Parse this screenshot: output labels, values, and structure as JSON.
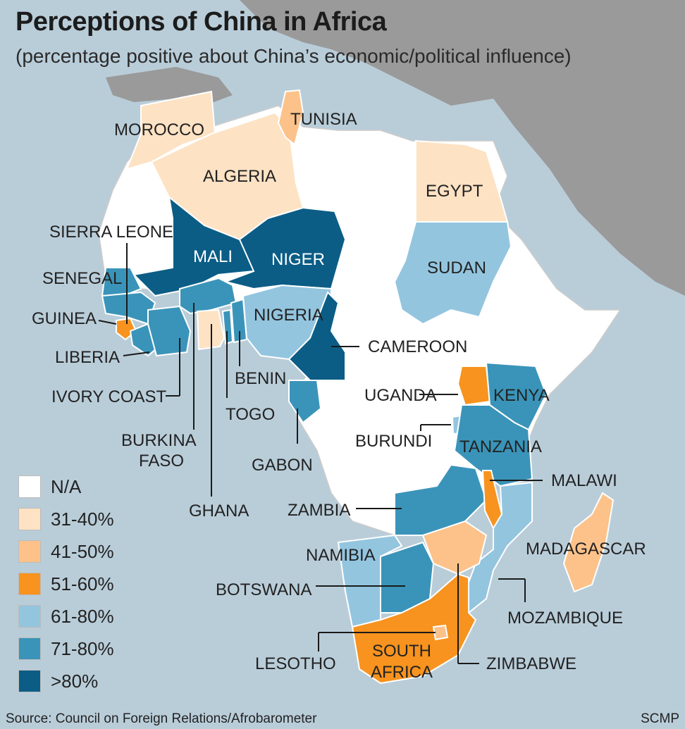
{
  "title": "Perceptions of China in Africa",
  "subtitle": "(percentage positive about China’s economic/political influence)",
  "source": "Source: Council on Foreign Relations/Afrobarometer",
  "credit": "SCMP",
  "colors": {
    "ocean": "#b9cdd9",
    "land_other": "#9a9a9a",
    "na": "#ffffff",
    "c31_40": "#fde2c4",
    "c41_50": "#fcc28a",
    "c51_60": "#f7931e",
    "c61_80": "#93c5df",
    "c71_80": "#3a94b9",
    "c80_plus": "#0b5d86"
  },
  "legend": [
    {
      "label": "N/A",
      "color": "#ffffff"
    },
    {
      "label": "31-40%",
      "color": "#fde2c4"
    },
    {
      "label": "41-50%",
      "color": "#fcc28a"
    },
    {
      "label": "51-60%",
      "color": "#f7931e"
    },
    {
      "label": "61-80%",
      "color": "#93c5df"
    },
    {
      "label": "71-80%",
      "color": "#3a94b9"
    },
    {
      "label": ">80%",
      "color": "#0b5d86"
    }
  ],
  "countries": {
    "morocco": {
      "label": "MOROCCO",
      "category": "31-40%"
    },
    "algeria": {
      "label": "ALGERIA",
      "category": "31-40%"
    },
    "tunisia": {
      "label": "TUNISIA",
      "category": "41-50%"
    },
    "egypt": {
      "label": "EGYPT",
      "category": "31-40%"
    },
    "mali": {
      "label": "MALI",
      "category": ">80%"
    },
    "niger": {
      "label": "NIGER",
      "category": ">80%"
    },
    "sierra_leone": {
      "label": "SIERRA LEONE",
      "category": "51-60%"
    },
    "senegal": {
      "label": "SENEGAL",
      "category": "71-80%"
    },
    "guinea": {
      "label": "GUINEA",
      "category": "71-80%"
    },
    "liberia": {
      "label": "LIBERIA",
      "category": "71-80%"
    },
    "ivory_coast": {
      "label": "IVORY COAST",
      "category": "71-80%"
    },
    "burkina_faso_1": {
      "label": "BURKINA",
      "category": "71-80%"
    },
    "burkina_faso_2": {
      "label": "FASO"
    },
    "ghana": {
      "label": "GHANA",
      "category": "31-40%"
    },
    "togo": {
      "label": "TOGO",
      "category": "71-80%"
    },
    "benin": {
      "label": "BENIN",
      "category": "71-80%"
    },
    "nigeria": {
      "label": "NIGERIA",
      "category": "61-80%"
    },
    "cameroon": {
      "label": "CAMEROON",
      "category": ">80%"
    },
    "gabon": {
      "label": "GABON",
      "category": "71-80%"
    },
    "sudan": {
      "label": "SUDAN",
      "category": "61-80%"
    },
    "uganda": {
      "label": "UGANDA",
      "category": "51-60%"
    },
    "kenya": {
      "label": "KENYA",
      "category": "71-80%"
    },
    "burundi": {
      "label": "BURUNDI",
      "category": "61-80%"
    },
    "tanzania": {
      "label": "TANZANIA",
      "category": "71-80%"
    },
    "malawi": {
      "label": "MALAWI",
      "category": "51-60%"
    },
    "zambia": {
      "label": "ZAMBIA",
      "category": "71-80%"
    },
    "madagascar": {
      "label": "MADAGASCAR",
      "category": "41-50%"
    },
    "namibia": {
      "label": "NAMIBIA",
      "category": "61-80%"
    },
    "botswana": {
      "label": "BOTSWANA",
      "category": "71-80%"
    },
    "mozambique": {
      "label": "MOZAMBIQUE",
      "category": "61-80%"
    },
    "zimbabwe": {
      "label": "ZIMBABWE",
      "category": "41-50%"
    },
    "lesotho": {
      "label": "LESOTHO",
      "category": "41-50%"
    },
    "south_africa_1": {
      "label": "SOUTH",
      "category": "51-60%"
    },
    "south_africa_2": {
      "label": "AFRICA"
    }
  }
}
